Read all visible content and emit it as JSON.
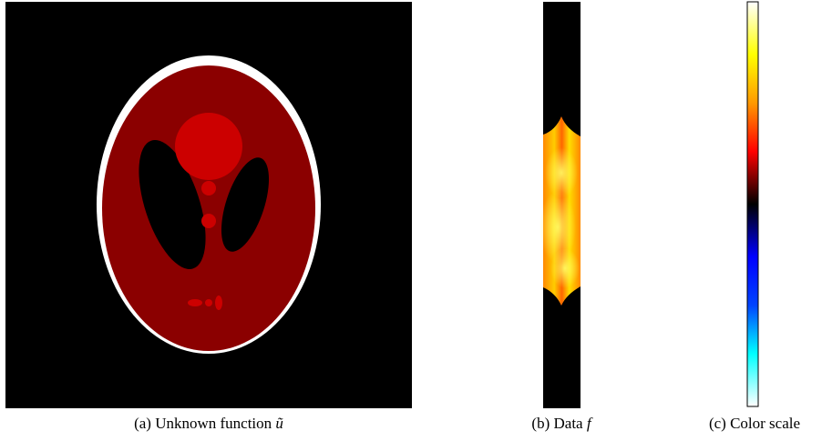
{
  "figures": [
    {
      "label": "(a) Unknown function",
      "math": "ũ"
    },
    {
      "label": "(b) Data",
      "math": "f"
    },
    {
      "label": "(c) Color scale"
    }
  ]
}
